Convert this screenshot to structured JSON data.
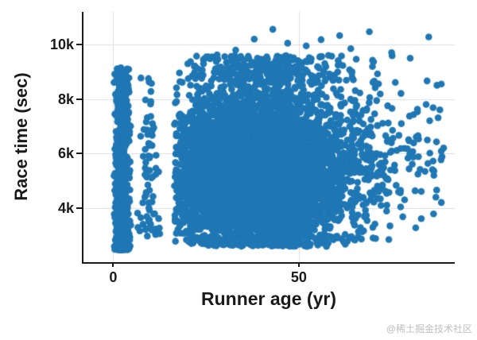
{
  "chart": {
    "watermark": "@稀土掘金技术社区",
    "colors": {
      "marker": "#1f77b4",
      "grid": "#dedede",
      "axis": "#1a1a1a",
      "watermark": "#bfbfbf"
    }
  },
  "chart_data": {
    "type": "scatter",
    "title": "",
    "xlabel": "Runner age (yr)",
    "ylabel": "Race time (sec)",
    "xlim": [
      -8,
      92
    ],
    "ylim": [
      2000,
      11200
    ],
    "grid": true,
    "legend": false,
    "marker": {
      "color": "#1f77b4",
      "radius": 4.3
    },
    "x_ticks": [
      {
        "v": 0,
        "label": "0"
      },
      {
        "v": 50,
        "label": "50"
      }
    ],
    "y_ticks": [
      {
        "v": 4000,
        "label": "4k"
      },
      {
        "v": 6000,
        "label": "6k"
      },
      {
        "v": 8000,
        "label": "8k"
      },
      {
        "v": 10000,
        "label": "10k"
      }
    ],
    "seed": 42,
    "clusters": [
      {
        "name": "infant-band",
        "count": 800,
        "x": {
          "dist": "normal",
          "mean": 2.3,
          "sd": 1.0,
          "min": 0.2,
          "max": 5.0
        },
        "y": {
          "dist": "pow",
          "min": 2450,
          "max": 9150,
          "pow": 1.5
        }
      },
      {
        "name": "child-band",
        "count": 75,
        "x": {
          "dist": "normal",
          "mean": 9.5,
          "sd": 1.4,
          "min": 6.0,
          "max": 13.0
        },
        "y": {
          "dist": "pow",
          "min": 2950,
          "max": 8800,
          "pow": 1.4
        }
      },
      {
        "name": "adult-core",
        "count": 5200,
        "x": {
          "dist": "normal",
          "mean": 39,
          "sd": 13.5,
          "min": 16.5,
          "max": 83
        },
        "y": {
          "dist": "normal",
          "mean": 5350,
          "sd": 1500,
          "min": 2600,
          "max": 9300
        }
      },
      {
        "name": "adult-top-fringe",
        "count": 260,
        "x": {
          "dist": "normal",
          "mean": 40,
          "sd": 11,
          "min": 20,
          "max": 76
        },
        "y": {
          "dist": "uniform",
          "min": 8600,
          "max": 9600
        }
      },
      {
        "name": "senior-right-fringe",
        "count": 90,
        "x": {
          "dist": "uniform",
          "min": 66,
          "max": 89
        },
        "y": {
          "dist": "normal",
          "mean": 5800,
          "sd": 1500,
          "min": 3400,
          "max": 9000
        }
      },
      {
        "name": "bottom-fringe",
        "count": 150,
        "x": {
          "dist": "normal",
          "mean": 40,
          "sd": 12,
          "min": 18,
          "max": 70
        },
        "y": {
          "dist": "uniform",
          "min": 2580,
          "max": 3000
        }
      }
    ],
    "outlier_points": [
      [
        43,
        10560
      ],
      [
        47,
        10050
      ],
      [
        52,
        9950
      ],
      [
        56,
        10180
      ],
      [
        61,
        10330
      ],
      [
        64,
        9850
      ],
      [
        69,
        10470
      ],
      [
        75,
        9700
      ],
      [
        85,
        10280
      ],
      [
        33,
        9800
      ],
      [
        28,
        9620
      ],
      [
        80,
        9500
      ],
      [
        38,
        10200
      ],
      [
        58,
        9600
      ],
      [
        88,
        7600
      ],
      [
        89,
        6200
      ],
      [
        86,
        5400
      ],
      [
        83,
        4600
      ]
    ]
  }
}
